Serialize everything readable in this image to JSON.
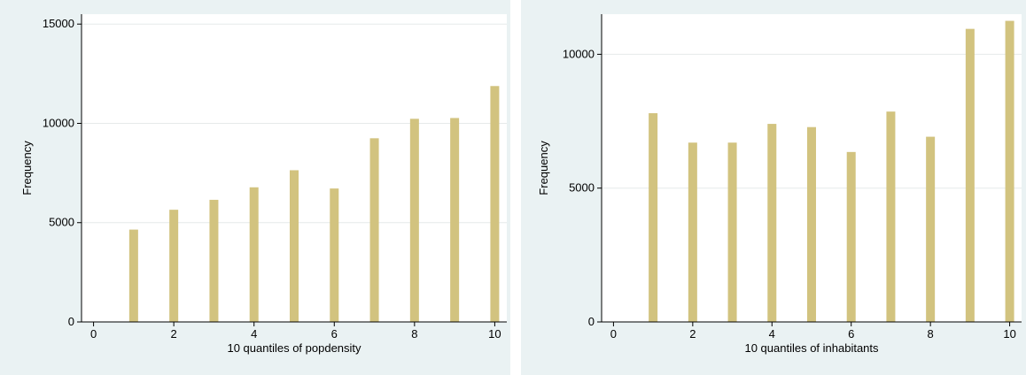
{
  "chart_data": [
    {
      "type": "bar",
      "xlabel": "10 quantiles of popdensity",
      "ylabel": "Frequency",
      "x": [
        1,
        2,
        3,
        4,
        5,
        6,
        7,
        8,
        9,
        10
      ],
      "values": [
        4650,
        5650,
        6150,
        6780,
        7640,
        6720,
        9250,
        10230,
        10270,
        11880
      ],
      "xlim": [
        -0.3,
        10.3
      ],
      "ylim": [
        0,
        15500
      ],
      "xticks": [
        "0",
        "2",
        "4",
        "6",
        "8",
        "10"
      ],
      "yticks": [
        "0",
        "5000",
        "10000",
        "15000"
      ],
      "grid": true,
      "bar_color": "#d2c37f",
      "plot_background": "#ffffff",
      "panel_background": "#eaf2f3"
    },
    {
      "type": "bar",
      "xlabel": "10 quantiles of inhabitants",
      "ylabel": "Frequency",
      "x": [
        1,
        2,
        3,
        4,
        5,
        6,
        7,
        8,
        9,
        10
      ],
      "values": [
        7800,
        6700,
        6700,
        7400,
        7280,
        6350,
        7860,
        6920,
        10950,
        11250
      ],
      "xlim": [
        -0.3,
        10.3
      ],
      "ylim": [
        0,
        11500
      ],
      "xticks": [
        "0",
        "2",
        "4",
        "6",
        "8",
        "10"
      ],
      "yticks": [
        "0",
        "5000",
        "10000"
      ],
      "grid": true,
      "bar_color": "#d2c37f",
      "plot_background": "#ffffff",
      "panel_background": "#eaf2f3"
    }
  ]
}
